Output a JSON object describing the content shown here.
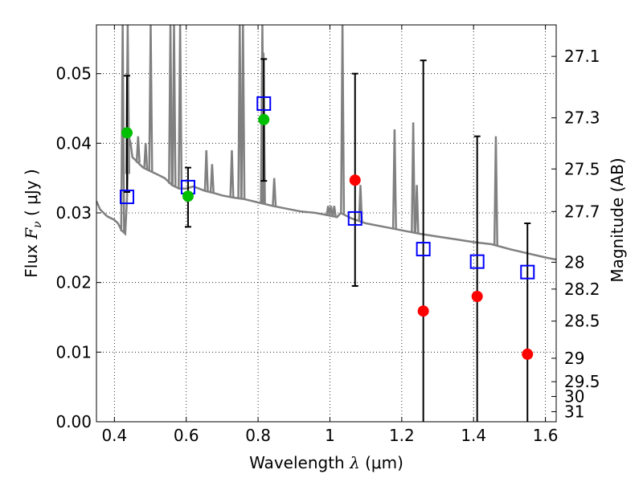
{
  "chart_data": {
    "type": "scatter",
    "xlabel": {
      "pre": "Wavelength",
      "sym": "λ",
      "unit": "(μm)"
    },
    "ylabel": {
      "pre": "Flux",
      "sym": "F",
      "sub": "ν",
      "unit": "( μJy )"
    },
    "y2label": "Magnitude (AB)",
    "xlim": [
      0.35,
      1.63
    ],
    "ylim": [
      0.0,
      0.057
    ],
    "grid": true,
    "x_ticks": [
      0.4,
      0.6,
      0.8,
      1.0,
      1.2,
      1.4,
      1.6
    ],
    "x_tick_labels": [
      "0.4",
      "0.6",
      "0.8",
      "1",
      "1.2",
      "1.4",
      "1.6"
    ],
    "y_ticks": [
      0.0,
      0.01,
      0.02,
      0.03,
      0.04,
      0.05
    ],
    "y_tick_labels": [
      "0.00",
      "0.01",
      "0.02",
      "0.03",
      "0.04",
      "0.05"
    ],
    "y2_ticks": [
      "27.1",
      "27.3",
      "27.5",
      "27.7",
      "28",
      "28.2",
      "28.5",
      "29",
      "29.5",
      "30",
      "31"
    ],
    "colors": {
      "model": "#808080",
      "model_fit": "#0000ff",
      "detection": "#00bf00",
      "nondetection": "#ff0000",
      "errorbar": "#000000"
    },
    "series": [
      {
        "kind": "model-spectrum",
        "x": [
          0.35,
          0.36,
          0.38,
          0.4,
          0.41,
          0.42,
          0.43,
          0.435,
          0.44,
          0.445,
          0.45,
          0.46,
          0.47,
          0.48,
          0.5,
          0.52,
          0.54,
          0.55,
          0.56,
          0.58,
          0.6,
          0.62,
          0.65,
          0.68,
          0.7,
          0.73,
          0.76,
          0.8,
          0.84,
          0.88,
          0.92,
          0.96,
          0.98,
          1.0,
          1.02,
          1.03,
          1.06,
          1.1,
          1.15,
          1.2,
          1.25,
          1.3,
          1.35,
          1.4,
          1.45,
          1.5,
          1.55,
          1.6,
          1.63
        ],
        "y": [
          0.0317,
          0.0305,
          0.0295,
          0.029,
          0.0285,
          0.0275,
          0.027,
          0.032,
          0.041,
          0.04,
          0.038,
          0.0375,
          0.037,
          0.0365,
          0.036,
          0.0355,
          0.035,
          0.0345,
          0.034,
          0.0335,
          0.0335,
          0.0338,
          0.0332,
          0.0328,
          0.0325,
          0.0322,
          0.032,
          0.0315,
          0.031,
          0.0306,
          0.0302,
          0.03,
          0.0298,
          0.0296,
          0.0294,
          0.03,
          0.0292,
          0.0285,
          0.028,
          0.0275,
          0.027,
          0.0266,
          0.0262,
          0.0258,
          0.0255,
          0.0248,
          0.0242,
          0.0236,
          0.0233
        ]
      },
      {
        "kind": "emission-lines",
        "x": [
          0.423,
          0.437,
          0.466,
          0.487,
          0.501,
          0.556,
          0.566,
          0.583,
          0.656,
          0.672,
          0.727,
          0.749,
          0.758,
          0.812,
          0.815,
          0.845,
          0.995,
          1.003,
          1.012,
          1.035,
          1.085,
          1.18,
          1.232,
          1.242,
          1.462
        ],
        "y": [
          0.057,
          0.057,
          0.041,
          0.04,
          0.057,
          0.057,
          0.057,
          0.057,
          0.039,
          0.037,
          0.039,
          0.057,
          0.057,
          0.057,
          0.053,
          0.035,
          0.031,
          0.031,
          0.031,
          0.057,
          0.034,
          0.042,
          0.043,
          0.034,
          0.041
        ]
      },
      {
        "kind": "model-points",
        "x": [
          0.435,
          0.605,
          0.816,
          1.07,
          1.26,
          1.41,
          1.55
        ],
        "y": [
          0.0323,
          0.0337,
          0.0457,
          0.0292,
          0.0248,
          0.023,
          0.0215
        ]
      },
      {
        "kind": "detections",
        "x": [
          0.435,
          0.605,
          0.816
        ],
        "y": [
          0.0415,
          0.0324,
          0.0434
        ],
        "err_lo": [
          0.033,
          0.028,
          0.0346
        ],
        "err_hi": [
          0.0497,
          0.0365,
          0.0521
        ]
      },
      {
        "kind": "nondetections",
        "x": [
          1.07,
          1.26,
          1.41,
          1.55
        ],
        "y": [
          0.0347,
          0.0159,
          0.018,
          0.0097
        ],
        "err_lo": [
          0.0195,
          0.0,
          0.0,
          0.0
        ],
        "err_hi": [
          0.05,
          0.0519,
          0.041,
          0.0285
        ]
      }
    ]
  }
}
